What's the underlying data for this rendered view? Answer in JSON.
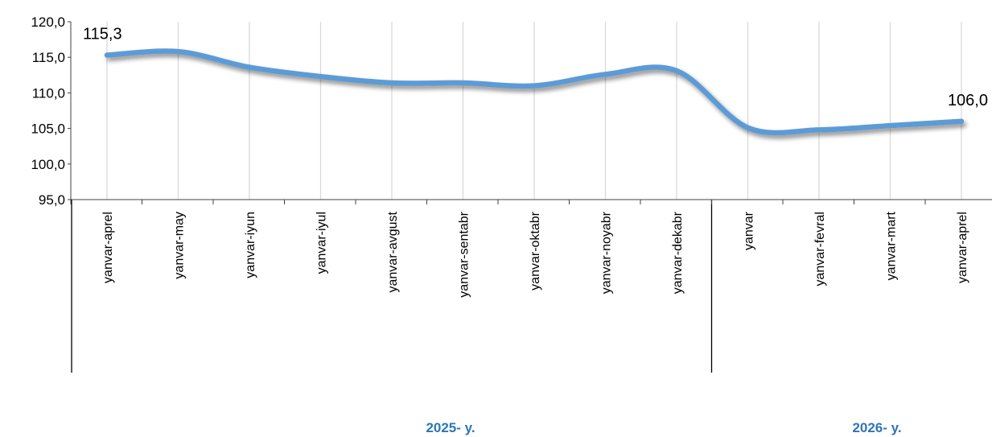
{
  "chart_data": {
    "type": "line",
    "categories": [
      "yanvar-aprel",
      "yanvar-may",
      "yanvar-iyun",
      "yanvar-iyul",
      "yanvar-avgust",
      "yanvar-sentabr",
      "yanvar-oktabr",
      "yanvar-noyabr",
      "yanvar-dekabr",
      "yanvar",
      "yanvar-fevral",
      "yanvar-mart",
      "yanvar-aprel"
    ],
    "series": [
      {
        "values": [
          115.3,
          115.8,
          113.6,
          112.3,
          111.4,
          111.4,
          111.0,
          112.6,
          113.1,
          105.1,
          104.8,
          105.4,
          106.0
        ],
        "color": "#5b9bd5"
      }
    ],
    "ylim": [
      95,
      120
    ],
    "yticks": [
      "120,0",
      "115,0",
      "110,0",
      "105,0",
      "100,0",
      "95,0"
    ],
    "grid": "vertical",
    "data_labels": [
      {
        "index": 0,
        "text": "115,3"
      },
      {
        "index": 12,
        "text": "106,0"
      }
    ],
    "groups": [
      {
        "label": "2025- y.",
        "start": 0,
        "end": 8
      },
      {
        "label": "2026- y.",
        "start": 9,
        "end": 12
      }
    ],
    "group_label_color": "#2e75b6",
    "line_color": "#5b9bd5",
    "grid_color": "#d9d9d9"
  }
}
